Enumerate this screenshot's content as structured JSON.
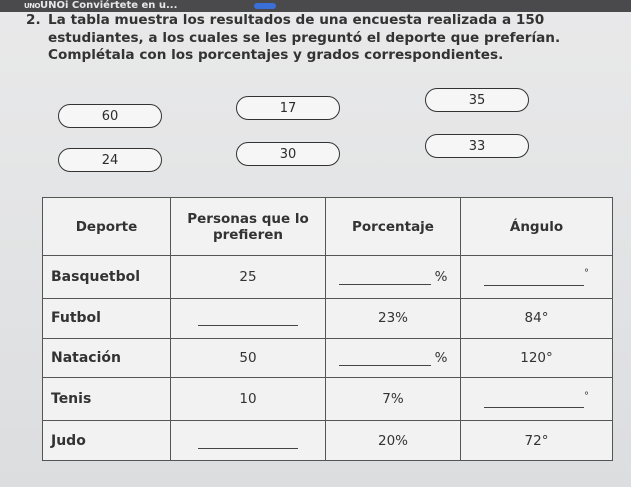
{
  "app_bar": {
    "logo": "UNO",
    "title": "UNOi Conviértete en u..."
  },
  "question": {
    "number": "2.",
    "lines": [
      "La tabla muestra los resultados de una encuesta realizada a 150",
      "estudiantes, a los cuales se les preguntó el deporte que preferían.",
      "Complétala con los porcentajes y grados correspondientes."
    ]
  },
  "options": [
    "60",
    "17",
    "35",
    "24",
    "30",
    "33"
  ],
  "table": {
    "headers": [
      "Deporte",
      "Personas que lo prefieren",
      "Porcentaje",
      "Ángulo"
    ],
    "rows": [
      {
        "sport": "Basquetbol",
        "people": "25",
        "percent": "",
        "angle": ""
      },
      {
        "sport": "Futbol",
        "people": "",
        "percent": "23%",
        "angle": "84°"
      },
      {
        "sport": "Natación",
        "people": "50",
        "percent": "",
        "angle": "120°"
      },
      {
        "sport": "Tenis",
        "people": "10",
        "percent": "7%",
        "angle": ""
      },
      {
        "sport": "Judo",
        "people": "",
        "percent": "20%",
        "angle": "72°"
      }
    ],
    "percent_sign": "%",
    "degree_sign": "°"
  }
}
